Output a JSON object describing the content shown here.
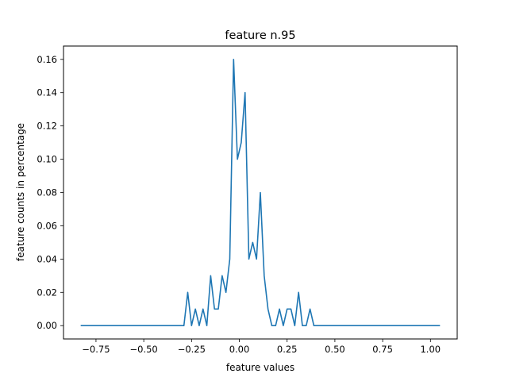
{
  "chart_data": {
    "type": "line",
    "title": "feature n.95",
    "xlabel": "feature values",
    "ylabel": "feature counts in percentage",
    "xlim": [
      -0.92,
      1.14
    ],
    "ylim": [
      -0.008,
      0.168
    ],
    "xticks": [
      -0.75,
      -0.5,
      -0.25,
      0.0,
      0.25,
      0.5,
      0.75,
      1.0
    ],
    "xtick_labels": [
      "−0.75",
      "−0.50",
      "−0.25",
      "0.00",
      "0.25",
      "0.50",
      "0.75",
      "1.00"
    ],
    "yticks": [
      0.0,
      0.02,
      0.04,
      0.06,
      0.08,
      0.1,
      0.12,
      0.14,
      0.16
    ],
    "ytick_labels": [
      "0.00",
      "0.02",
      "0.04",
      "0.06",
      "0.08",
      "0.10",
      "0.12",
      "0.14",
      "0.16"
    ],
    "grid": false,
    "series": [
      {
        "color": "#1f77b4",
        "x": [
          -0.83,
          -0.29,
          -0.27,
          -0.25,
          -0.23,
          -0.21,
          -0.19,
          -0.17,
          -0.15,
          -0.13,
          -0.11,
          -0.09,
          -0.07,
          -0.05,
          -0.03,
          -0.01,
          0.01,
          0.03,
          0.05,
          0.07,
          0.09,
          0.11,
          0.13,
          0.15,
          0.17,
          0.19,
          0.21,
          0.23,
          0.25,
          0.27,
          0.29,
          0.31,
          0.33,
          0.35,
          0.37,
          0.39,
          1.05
        ],
        "y": [
          0.0,
          0.0,
          0.02,
          0.0,
          0.01,
          0.0,
          0.01,
          0.0,
          0.03,
          0.01,
          0.01,
          0.03,
          0.02,
          0.04,
          0.16,
          0.1,
          0.11,
          0.14,
          0.04,
          0.05,
          0.04,
          0.08,
          0.03,
          0.01,
          0.0,
          0.0,
          0.01,
          0.0,
          0.01,
          0.01,
          0.0,
          0.02,
          0.0,
          0.0,
          0.01,
          0.0,
          0.0
        ]
      }
    ]
  }
}
